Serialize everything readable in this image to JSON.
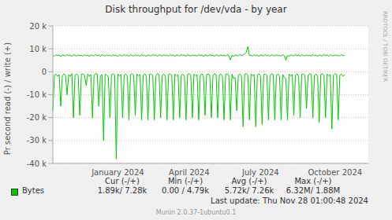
{
  "chart_data": {
    "type": "line",
    "title": "Disk throughput for /dev/vda - by year",
    "y_label": "Pr second read (-) / write (+)",
    "categories": [
      null,
      null,
      null,
      null,
      null,
      null,
      null,
      null,
      null,
      null,
      null,
      null,
      null,
      null,
      null,
      null,
      null,
      null,
      null,
      null,
      null,
      null,
      null,
      null,
      null,
      null,
      null,
      null,
      null,
      null,
      null,
      null,
      null,
      null,
      null,
      null,
      null,
      null,
      null,
      null,
      null,
      "January 2024",
      null,
      null,
      null,
      null,
      null,
      null,
      null,
      null,
      null,
      null,
      null,
      null,
      null,
      null,
      null,
      null,
      null,
      null,
      null,
      null,
      null,
      null,
      null,
      null,
      null,
      null,
      null,
      null,
      null,
      null,
      null,
      null,
      null,
      null,
      null,
      null,
      null,
      null,
      null,
      null,
      null,
      null,
      null,
      null,
      "April 2024",
      null,
      null,
      null,
      null,
      null,
      null,
      null,
      null,
      null,
      null,
      null,
      null,
      null,
      null,
      null,
      null,
      null,
      null,
      null,
      null,
      null,
      null,
      null,
      null,
      null,
      null,
      null,
      null,
      null,
      null,
      null,
      null,
      null,
      null,
      null,
      null,
      null,
      null,
      null,
      null,
      null,
      null,
      null,
      null,
      "July 2024",
      null,
      null,
      null,
      null,
      null,
      null,
      null,
      null,
      null,
      null,
      null,
      null,
      null,
      null,
      null,
      null,
      null,
      null,
      null,
      null,
      null,
      null,
      null,
      null,
      null,
      null,
      null,
      null,
      null,
      null,
      null,
      null,
      null,
      null,
      null,
      null,
      null,
      null,
      null,
      null,
      null,
      null,
      null,
      null,
      null,
      null,
      "October 2024",
      null,
      null,
      null,
      null,
      null,
      null,
      null,
      null,
      null,
      null,
      null,
      null,
      null,
      null,
      null,
      null,
      null,
      null,
      null,
      null,
      null
    ],
    "series": [
      {
        "name": "Bytes",
        "color": "#00cc00",
        "write": [
          7200,
          6800,
          7500,
          7000,
          7300,
          6600,
          7400,
          7100,
          6900,
          7600,
          7000,
          7300,
          6700,
          7500,
          7100,
          6900,
          7400,
          7000,
          7200,
          6800,
          7500,
          7000,
          7300,
          6600,
          7400,
          7100,
          6900,
          7600,
          7000,
          7300,
          6700,
          7500,
          7100,
          6900,
          7400,
          7000,
          7200,
          6800,
          7500,
          7000,
          7300,
          6600,
          7400,
          7100,
          6900,
          7600,
          7000,
          7300,
          6700,
          7500,
          7100,
          6900,
          7400,
          7000,
          7200,
          6800,
          7500,
          7000,
          7300,
          6600,
          7400,
          7100,
          6900,
          7600,
          7000,
          7300,
          6700,
          7500,
          7100,
          6900,
          7400,
          7000,
          7200,
          6800,
          7500,
          7000,
          7300,
          6600,
          7400,
          7100,
          6900,
          7600,
          7000,
          7300,
          6700,
          7500,
          7100,
          6900,
          7400,
          7000,
          7200,
          6800,
          7500,
          7000,
          7300,
          6600,
          7400,
          7100,
          6900,
          7600,
          7000,
          7300,
          6700,
          7500,
          7100,
          6900,
          7400,
          7000,
          7200,
          6800,
          7500,
          7000,
          5200,
          7300,
          6600,
          7400,
          7100,
          6900,
          7600,
          7000,
          7300,
          7800,
          8500,
          11000,
          7000,
          7200,
          6800,
          7500,
          7000,
          7300,
          6600,
          7400,
          7100,
          6900,
          7600,
          7000,
          7300,
          6700,
          7500,
          7100,
          6900,
          7400,
          7000,
          7200,
          6800,
          7500,
          7000,
          5000,
          7300,
          6600,
          7400,
          7100,
          6900,
          7600,
          7000,
          7300,
          6700,
          7500,
          7100,
          6900,
          7400,
          7000,
          7200,
          6800,
          7500,
          7000,
          7300,
          6600,
          7400,
          7100,
          6900,
          7600,
          7000,
          7300,
          6700,
          7500,
          7100,
          6900,
          7400,
          7000,
          7200,
          6800,
          7500,
          7000,
          7300,
          null,
          null,
          null,
          null,
          null,
          null,
          null,
          null,
          null,
          null,
          null,
          null,
          null,
          null,
          7000
        ],
        "read": [
          -17000,
          -1500,
          -1000,
          -2000,
          -1200,
          -15000,
          -1800,
          -900,
          -1500,
          -10000,
          -1200,
          -2000,
          -800,
          -20000,
          -1500,
          -1000,
          -1800,
          -19000,
          -1200,
          -900,
          -1500,
          -6000,
          -1000,
          -2000,
          -1200,
          -20000,
          -1500,
          -800,
          -1000,
          -15000,
          -1800,
          -1200,
          -30000,
          -1000,
          -1500,
          -2000,
          -20000,
          -1200,
          -900,
          -1500,
          -38000,
          -1000,
          -1800,
          -1200,
          -20000,
          -1500,
          -1000,
          -2000,
          -21000,
          -1200,
          -800,
          -1500,
          -19000,
          -1000,
          -1800,
          -1200,
          -21000,
          -1500,
          -900,
          -2000,
          -21000,
          -1200,
          -1000,
          -1500,
          -21000,
          -1800,
          -800,
          -1200,
          -20000,
          -1500,
          -1000,
          -2000,
          -21000,
          -1200,
          -900,
          -1500,
          -21000,
          -1000,
          -1800,
          -1200,
          -20000,
          -1500,
          -1000,
          -2000,
          -21000,
          -1200,
          -800,
          -1500,
          -20000,
          -1000,
          -1800,
          -1200,
          -21000,
          -1500,
          -900,
          -2000,
          -19000,
          -1200,
          -1000,
          -1500,
          -20000,
          -1800,
          -800,
          -1200,
          -20000,
          -1500,
          -1000,
          -2000,
          -21000,
          -1200,
          -900,
          -1500,
          -21000,
          -1000,
          -3000,
          -2500,
          -17000,
          -1500,
          -1000,
          -2000,
          -24000,
          -1200,
          -800,
          -1500,
          -21000,
          -1000,
          -1800,
          -1200,
          -24000,
          -1500,
          -900,
          -2000,
          -23000,
          -1200,
          -1000,
          -1500,
          -21000,
          -1800,
          -800,
          -1200,
          -21000,
          -1500,
          -1000,
          -2000,
          -21000,
          -1200,
          -2500,
          -3000,
          -21000,
          -1000,
          -1800,
          -1200,
          -19000,
          -1500,
          -900,
          -2000,
          -20000,
          -1200,
          -1000,
          -1500,
          -16000,
          -1800,
          -800,
          -1200,
          -20000,
          -1500,
          -1000,
          -2000,
          -22000,
          -1200,
          -900,
          -1500,
          -20000,
          -1000,
          -1800,
          -1200,
          -25000,
          -1500,
          -800,
          -1200,
          -21000,
          -1500,
          -1000,
          -2000,
          -1200,
          null,
          null,
          null,
          null,
          null,
          null,
          null,
          null,
          null,
          null,
          null,
          null,
          null,
          null,
          -2000
        ]
      }
    ],
    "ylim": [
      -40000,
      20000
    ],
    "yticks": [
      {
        "value": -40000,
        "label": "-40 k"
      },
      {
        "value": -30000,
        "label": "-30 k"
      },
      {
        "value": -20000,
        "label": "-20 k"
      },
      {
        "value": -10000,
        "label": "-10 k"
      },
      0,
      {
        "value": 10000,
        "label": "10 k"
      },
      {
        "value": 20000,
        "label": "20 k"
      }
    ],
    "grid": true,
    "legend_table": {
      "columns": [
        "Cur (-/+)",
        "Min (-/+)",
        "Avg (-/+)",
        "Max (-/+)"
      ],
      "rows": [
        {
          "name": "Bytes",
          "values": [
            "1.89k/ 7.28k",
            "0.00 / 4.79k",
            "5.72k/ 7.26k",
            "6.32M/ 1.88M"
          ]
        }
      ]
    },
    "footer": "Last update: Thu Nov 28 01:00:48 2024",
    "credit": "Munin 2.0.37-1ubuntu0.1",
    "watermark": "RRDTOOL / TOBI OETIKER"
  }
}
